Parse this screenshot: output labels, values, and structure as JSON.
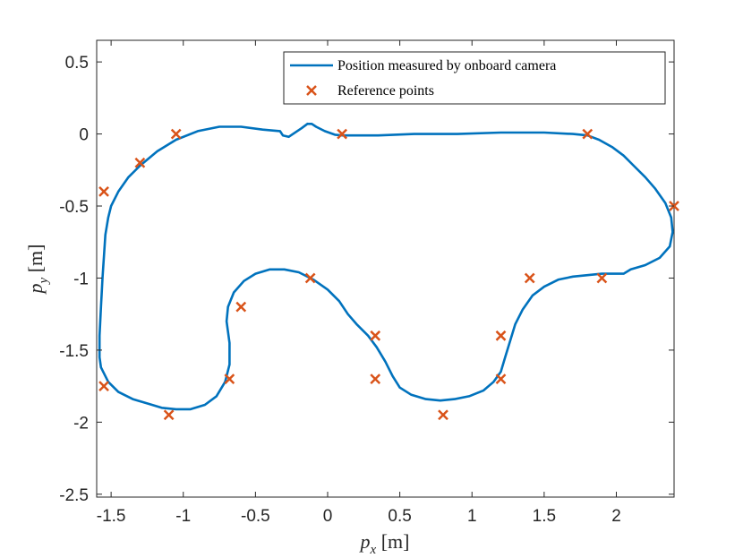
{
  "chart_data": {
    "type": "line",
    "xlabel": {
      "symbol": "p",
      "subscript": "x",
      "unit": "[m]"
    },
    "ylabel": {
      "symbol": "p",
      "subscript": "y",
      "unit": "[m]"
    },
    "xlim": [
      -1.6,
      2.4
    ],
    "ylim": [
      -2.52,
      0.65
    ],
    "xticks": [
      -1.5,
      -1,
      -0.5,
      0,
      0.5,
      1,
      1.5,
      2
    ],
    "xtick_labels": [
      "-1.5",
      "-1",
      "-0.5",
      "0",
      "0.5",
      "1",
      "1.5",
      "2"
    ],
    "yticks": [
      0.5,
      0,
      -0.5,
      -1,
      -1.5,
      -2,
      -2.5
    ],
    "ytick_labels": [
      "0.5",
      "0",
      "-0.5",
      "-1",
      "-1.5",
      "-2",
      "-2.5"
    ],
    "grid": false,
    "legend_position": "top-right",
    "colors": {
      "path": "#0072bd",
      "reference": "#d95319",
      "axis": "#262626"
    },
    "series": [
      {
        "name": "Position measured by onboard camera",
        "style": "line",
        "points": [
          [
            -0.14,
            0.07
          ],
          [
            -0.18,
            0.04
          ],
          [
            -0.24,
            0.0
          ],
          [
            -0.27,
            -0.02
          ],
          [
            -0.31,
            -0.01
          ],
          [
            -0.33,
            0.02
          ],
          [
            -0.45,
            0.03
          ],
          [
            -0.6,
            0.05
          ],
          [
            -0.75,
            0.05
          ],
          [
            -0.9,
            0.02
          ],
          [
            -1.05,
            -0.04
          ],
          [
            -1.18,
            -0.12
          ],
          [
            -1.3,
            -0.22
          ],
          [
            -1.38,
            -0.3
          ],
          [
            -1.45,
            -0.4
          ],
          [
            -1.5,
            -0.5
          ],
          [
            -1.52,
            -0.58
          ],
          [
            -1.54,
            -0.7
          ],
          [
            -1.55,
            -0.85
          ],
          [
            -1.56,
            -1.0
          ],
          [
            -1.57,
            -1.2
          ],
          [
            -1.58,
            -1.4
          ],
          [
            -1.58,
            -1.55
          ],
          [
            -1.57,
            -1.62
          ],
          [
            -1.52,
            -1.72
          ],
          [
            -1.45,
            -1.79
          ],
          [
            -1.35,
            -1.84
          ],
          [
            -1.25,
            -1.87
          ],
          [
            -1.15,
            -1.9
          ],
          [
            -1.05,
            -1.91
          ],
          [
            -0.95,
            -1.91
          ],
          [
            -0.85,
            -1.88
          ],
          [
            -0.77,
            -1.82
          ],
          [
            -0.71,
            -1.72
          ],
          [
            -0.68,
            -1.6
          ],
          [
            -0.68,
            -1.45
          ],
          [
            -0.7,
            -1.3
          ],
          [
            -0.69,
            -1.2
          ],
          [
            -0.65,
            -1.1
          ],
          [
            -0.58,
            -1.02
          ],
          [
            -0.5,
            -0.97
          ],
          [
            -0.4,
            -0.94
          ],
          [
            -0.3,
            -0.94
          ],
          [
            -0.2,
            -0.96
          ],
          [
            -0.1,
            -1.01
          ],
          [
            0.0,
            -1.08
          ],
          [
            0.08,
            -1.16
          ],
          [
            0.14,
            -1.25
          ],
          [
            0.2,
            -1.32
          ],
          [
            0.28,
            -1.4
          ],
          [
            0.34,
            -1.48
          ],
          [
            0.4,
            -1.58
          ],
          [
            0.45,
            -1.68
          ],
          [
            0.5,
            -1.76
          ],
          [
            0.58,
            -1.81
          ],
          [
            0.68,
            -1.84
          ],
          [
            0.78,
            -1.85
          ],
          [
            0.88,
            -1.84
          ],
          [
            0.98,
            -1.82
          ],
          [
            1.08,
            -1.78
          ],
          [
            1.15,
            -1.72
          ],
          [
            1.2,
            -1.65
          ],
          [
            1.23,
            -1.55
          ],
          [
            1.26,
            -1.45
          ],
          [
            1.3,
            -1.32
          ],
          [
            1.35,
            -1.22
          ],
          [
            1.42,
            -1.12
          ],
          [
            1.5,
            -1.06
          ],
          [
            1.6,
            -1.01
          ],
          [
            1.7,
            -0.99
          ],
          [
            1.8,
            -0.98
          ],
          [
            1.9,
            -0.97
          ],
          [
            2.0,
            -0.97
          ],
          [
            2.05,
            -0.97
          ],
          [
            2.1,
            -0.94
          ],
          [
            2.2,
            -0.91
          ],
          [
            2.3,
            -0.86
          ],
          [
            2.37,
            -0.78
          ],
          [
            2.39,
            -0.68
          ],
          [
            2.38,
            -0.58
          ],
          [
            2.34,
            -0.48
          ],
          [
            2.27,
            -0.38
          ],
          [
            2.2,
            -0.3
          ],
          [
            2.12,
            -0.22
          ],
          [
            2.05,
            -0.15
          ],
          [
            1.97,
            -0.09
          ],
          [
            1.88,
            -0.04
          ],
          [
            1.8,
            -0.01
          ],
          [
            1.7,
            0.0
          ],
          [
            1.5,
            0.01
          ],
          [
            1.2,
            0.01
          ],
          [
            0.9,
            0.0
          ],
          [
            0.6,
            0.0
          ],
          [
            0.35,
            -0.01
          ],
          [
            0.1,
            -0.01
          ],
          [
            0.05,
            -0.005
          ],
          [
            -0.02,
            0.02
          ],
          [
            -0.08,
            0.05
          ],
          [
            -0.11,
            0.07
          ],
          [
            -0.14,
            0.07
          ]
        ]
      },
      {
        "name": "Reference points",
        "style": "marker",
        "points": [
          [
            -1.55,
            -0.4
          ],
          [
            -1.3,
            -0.2
          ],
          [
            -1.05,
            0.0
          ],
          [
            0.1,
            0.0
          ],
          [
            1.8,
            0.0
          ],
          [
            2.4,
            -0.5
          ],
          [
            1.9,
            -1.0
          ],
          [
            1.4,
            -1.0
          ],
          [
            1.2,
            -1.4
          ],
          [
            1.2,
            -1.7
          ],
          [
            0.8,
            -1.95
          ],
          [
            0.33,
            -1.7
          ],
          [
            0.33,
            -1.4
          ],
          [
            -0.12,
            -1.0
          ],
          [
            -0.6,
            -1.2
          ],
          [
            -0.68,
            -1.7
          ],
          [
            -1.1,
            -1.95
          ],
          [
            -1.55,
            -1.75
          ]
        ]
      }
    ]
  }
}
